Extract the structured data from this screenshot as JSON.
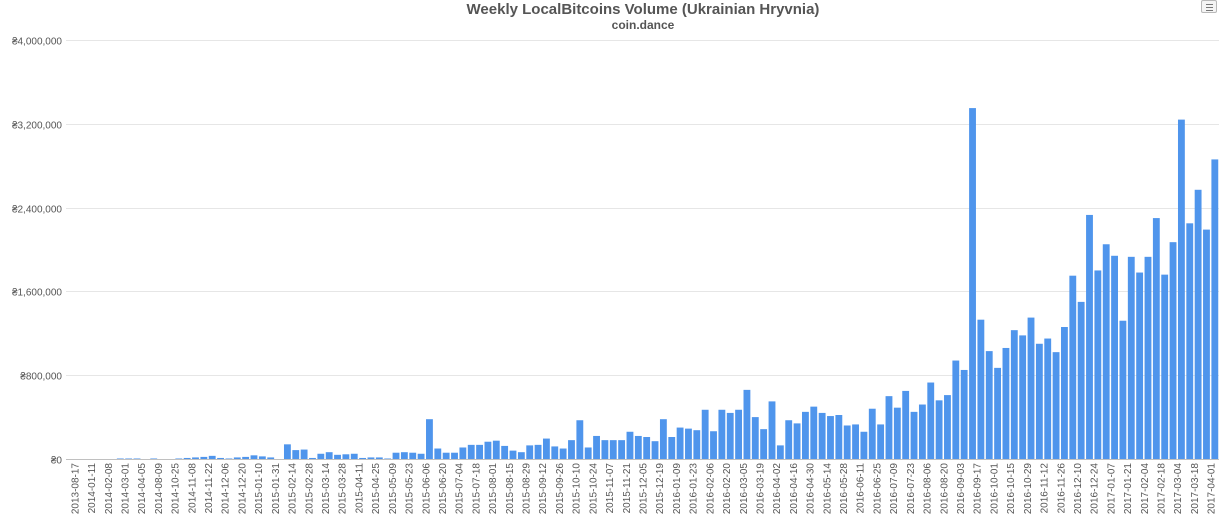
{
  "chart_data": {
    "type": "bar",
    "title": "Weekly LocalBitcoins Volume (Ukrainian Hryvnia)",
    "subtitle": "coin.dance",
    "xlabel": "",
    "ylabel": "",
    "ylim": [
      0,
      4000000
    ],
    "yticks": [
      0,
      800000,
      1600000,
      2400000,
      3200000,
      4000000
    ],
    "ytick_labels": [
      "₴0",
      "₴800,000",
      "₴1,600,000",
      "₴2,400,000",
      "₴3,200,000",
      "₴4,000,000"
    ],
    "grid": true,
    "legend": "none",
    "color": "#4f95ec",
    "xtick_labels": [
      "2013-08-17",
      "2014-01-11",
      "2014-02-08",
      "2014-03-01",
      "2014-04-05",
      "2014-08-09",
      "2014-10-25",
      "2014-11-08",
      "2014-11-22",
      "2014-12-06",
      "2014-12-20",
      "2015-01-10",
      "2015-01-31",
      "2015-02-14",
      "2015-02-28",
      "2015-03-14",
      "2015-03-28",
      "2015-04-11",
      "2015-04-25",
      "2015-05-09",
      "2015-05-23",
      "2015-06-06",
      "2015-06-20",
      "2015-07-04",
      "2015-07-18",
      "2015-08-01",
      "2015-08-15",
      "2015-08-29",
      "2015-09-12",
      "2015-09-26",
      "2015-10-10",
      "2015-10-24",
      "2015-11-07",
      "2015-11-21",
      "2015-12-05",
      "2015-12-19",
      "2016-01-09",
      "2016-01-23",
      "2016-02-06",
      "2016-02-20",
      "2016-03-05",
      "2016-03-19",
      "2016-04-02",
      "2016-04-16",
      "2016-04-30",
      "2016-05-14",
      "2016-05-28",
      "2016-06-11",
      "2016-06-25",
      "2016-07-09",
      "2016-07-23",
      "2016-08-06",
      "2016-08-20",
      "2016-09-03",
      "2016-09-17",
      "2016-10-01",
      "2016-10-15",
      "2016-10-29",
      "2016-11-12",
      "2016-11-26",
      "2016-12-10",
      "2016-12-24",
      "2017-01-07",
      "2017-01-21",
      "2017-02-04",
      "2017-02-18",
      "2017-03-04",
      "2017-03-18",
      "2017-04-01"
    ],
    "values": [
      0,
      0,
      0,
      0,
      0,
      0,
      5000,
      5000,
      5000,
      0,
      5000,
      0,
      0,
      5000,
      10000,
      15000,
      20000,
      30000,
      10000,
      5000,
      15000,
      20000,
      35000,
      25000,
      15000,
      0,
      140000,
      85000,
      90000,
      10000,
      50000,
      65000,
      40000,
      45000,
      50000,
      10000,
      15000,
      15000,
      5000,
      60000,
      65000,
      60000,
      50000,
      380000,
      100000,
      60000,
      60000,
      110000,
      135000,
      135000,
      165000,
      175000,
      125000,
      80000,
      65000,
      130000,
      135000,
      195000,
      120000,
      100000,
      180000,
      370000,
      110000,
      220000,
      180000,
      180000,
      180000,
      260000,
      220000,
      210000,
      170000,
      380000,
      210000,
      300000,
      290000,
      275000,
      470000,
      265000,
      470000,
      440000,
      470000,
      660000,
      400000,
      285000,
      550000,
      130000,
      370000,
      340000,
      450000,
      500000,
      440000,
      410000,
      420000,
      320000,
      330000,
      260000,
      480000,
      330000,
      600000,
      490000,
      650000,
      450000,
      520000,
      730000,
      560000,
      610000,
      940000,
      850000,
      3350000,
      1330000,
      1030000,
      870000,
      1060000,
      1230000,
      1180000,
      1350000,
      1100000,
      1150000,
      1020000,
      1260000,
      1750000,
      1500000,
      2330000,
      1800000,
      2050000,
      1940000,
      1320000,
      1930000,
      1780000,
      1930000,
      2300000,
      1760000,
      2070000,
      3240000,
      2250000,
      2570000,
      2190000,
      2860000
    ]
  },
  "toolbar": {
    "menu_icon": "menu-icon"
  }
}
